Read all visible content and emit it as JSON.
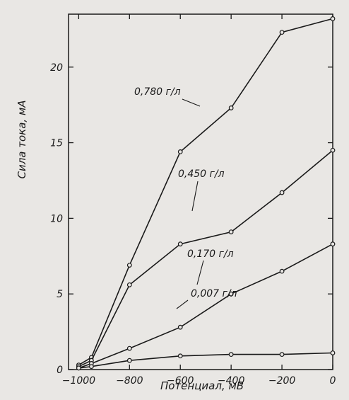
{
  "chart_data": {
    "type": "line",
    "xlabel": "Потенциал, мВ",
    "ylabel": "Сила тока, мА",
    "xlim": [
      -1040,
      0
    ],
    "ylim": [
      0,
      23.5
    ],
    "x_ticks": [
      -1000,
      -800,
      -600,
      -400,
      -200,
      0
    ],
    "x_tick_labels": [
      "−1000",
      "−800",
      "−600",
      "−400",
      "−200",
      "0"
    ],
    "y_ticks": [
      0,
      5,
      10,
      15,
      20
    ],
    "y_tick_labels": [
      "0",
      "5",
      "10",
      "15",
      "20"
    ],
    "grid": false,
    "series": [
      {
        "name": "0,780 г/л",
        "x": [
          -1000,
          -950,
          -800,
          -600,
          -400,
          -200,
          0
        ],
        "y": [
          0.3,
          0.8,
          6.9,
          14.4,
          17.3,
          22.3,
          23.2
        ]
      },
      {
        "name": "0,450 г/л",
        "x": [
          -1000,
          -950,
          -800,
          -600,
          -400,
          -200,
          0
        ],
        "y": [
          0.2,
          0.6,
          5.6,
          8.3,
          9.1,
          11.7,
          14.5
        ]
      },
      {
        "name": "0,170 г/л",
        "x": [
          -1000,
          -950,
          -800,
          -600,
          -400,
          -200,
          0
        ],
        "y": [
          0.1,
          0.4,
          1.4,
          2.8,
          5.0,
          6.5,
          8.3
        ]
      },
      {
        "name": "0,007 г/л",
        "x": [
          -1000,
          -950,
          -800,
          -600,
          -400,
          -200,
          0
        ],
        "y": [
          0.1,
          0.2,
          0.6,
          0.9,
          1.0,
          1.0,
          1.1
        ]
      }
    ]
  }
}
